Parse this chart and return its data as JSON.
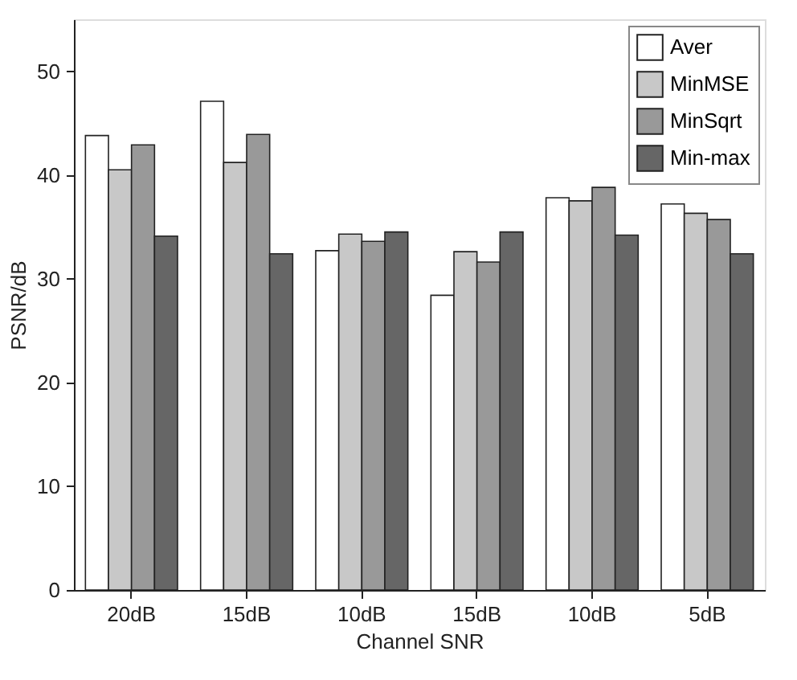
{
  "chart_data": {
    "type": "bar",
    "xlabel": "Channel SNR",
    "ylabel": "PSNR/dB",
    "categories": [
      "20dB",
      "15dB",
      "10dB",
      "15dB",
      "10dB",
      "5dB"
    ],
    "series": [
      {
        "name": "Aver",
        "color": "#ffffff",
        "values": [
          43.8,
          47.1,
          32.7,
          28.4,
          37.8,
          37.2
        ]
      },
      {
        "name": "MinMSE",
        "color": "#c8c8c8",
        "values": [
          40.5,
          41.2,
          34.3,
          32.6,
          37.5,
          36.3
        ]
      },
      {
        "name": "MinSqrt",
        "color": "#999999",
        "values": [
          42.9,
          43.9,
          33.6,
          31.6,
          38.8,
          35.7
        ]
      },
      {
        "name": "Min-max",
        "color": "#666666",
        "values": [
          34.1,
          32.4,
          34.5,
          34.5,
          34.2,
          32.4
        ]
      }
    ],
    "ylim": [
      0,
      55
    ],
    "yticks": [
      0,
      10,
      20,
      30,
      40,
      50
    ],
    "grid": false,
    "legend": "top right"
  }
}
